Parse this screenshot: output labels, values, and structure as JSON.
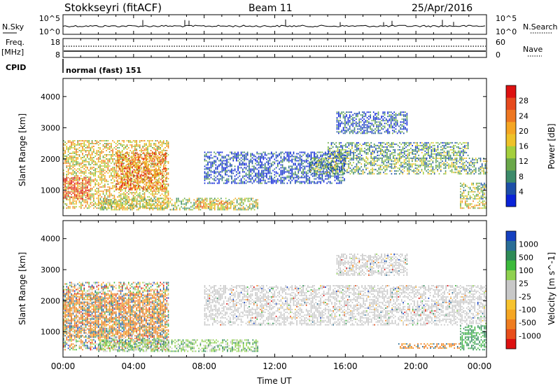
{
  "header": {
    "station": "Stokkseyri (fitACF)",
    "beam": "Beam 11",
    "date": "25/Apr/2016"
  },
  "nsky_panel": {
    "left_label": "N.Sky",
    "left_ticks": [
      "10^5",
      "10^0"
    ],
    "right_ticks": [
      "10^5",
      "10^0"
    ],
    "right_label": "N.Search",
    "series": [
      {
        "name": "N.Sky",
        "style": "solid"
      },
      {
        "name": "N.Search",
        "style": "dotted"
      }
    ]
  },
  "freq_panel": {
    "left_label_1": "Freq.",
    "left_label_2": "[MHz]",
    "left_ticks": [
      "18",
      "8"
    ],
    "right_ticks": [
      "60",
      "0"
    ],
    "right_label": "Nave",
    "series": [
      {
        "name": "Freq.",
        "style": "solid"
      },
      {
        "name": "Nave",
        "style": "dotted"
      }
    ]
  },
  "cpid": {
    "label": "CPID",
    "value": "normal (fast) 151"
  },
  "x_axis": {
    "label": "Time UT",
    "tick_labels": [
      "00:00",
      "04:00",
      "08:00",
      "12:00",
      "16:00",
      "20:00",
      "00:00"
    ]
  },
  "chart_data": [
    {
      "type": "heatmap",
      "name": "power",
      "xlabel": "Time UT",
      "ylabel": "Slant Range [km]",
      "x_range_hours": [
        0,
        24
      ],
      "ylim": [
        180,
        4580
      ],
      "y_ticks": [
        1000,
        2000,
        3000,
        4000
      ],
      "colorbar": {
        "label": "Power [dB]",
        "tick_labels": [
          "4",
          "8",
          "12",
          "16",
          "20",
          "24",
          "28"
        ],
        "colors": [
          "#0a23d8",
          "#1d4fa8",
          "#3c8a6a",
          "#6aa84a",
          "#a4cf3c",
          "#eec229",
          "#f5a623",
          "#ee7722",
          "#e64a1e",
          "#dd1111"
        ]
      },
      "regions": [
        {
          "t": [
            0.0,
            6.0
          ],
          "r": [
            400,
            2600
          ],
          "level": 0.55
        },
        {
          "t": [
            0.0,
            1.5
          ],
          "r": [
            700,
            1400
          ],
          "level": 0.85
        },
        {
          "t": [
            3.0,
            5.8
          ],
          "r": [
            1000,
            2200
          ],
          "level": 0.75
        },
        {
          "t": [
            2.0,
            11.0
          ],
          "r": [
            350,
            750
          ],
          "level": 0.45
        },
        {
          "t": [
            7.5,
            9.5
          ],
          "r": [
            400,
            650
          ],
          "level": 0.65
        },
        {
          "t": [
            8.0,
            16.0
          ],
          "r": [
            1200,
            2200
          ],
          "level": 0.1
        },
        {
          "t": [
            14.0,
            24.0
          ],
          "r": [
            1500,
            2000
          ],
          "level": 0.35
        },
        {
          "t": [
            15.0,
            23.0
          ],
          "r": [
            2000,
            2500
          ],
          "level": 0.3
        },
        {
          "t": [
            15.5,
            19.5
          ],
          "r": [
            2800,
            3500
          ],
          "level": 0.15
        },
        {
          "t": [
            22.5,
            24.0
          ],
          "r": [
            700,
            1200
          ],
          "level": 0.4
        },
        {
          "t": [
            22.5,
            24.0
          ],
          "r": [
            400,
            650
          ],
          "level": 0.55
        }
      ]
    },
    {
      "type": "heatmap",
      "name": "velocity",
      "xlabel": "Time UT",
      "ylabel": "Slant Range [km]",
      "x_range_hours": [
        0,
        24
      ],
      "ylim": [
        180,
        4580
      ],
      "y_ticks": [
        1000,
        2000,
        3000,
        4000
      ],
      "colorbar": {
        "label": "Velocity [m s^-1]",
        "tick_labels": [
          "1000",
          "500",
          "100",
          "25",
          "-25",
          "-100",
          "-500",
          "-1000"
        ],
        "colors": [
          "#1540c0",
          "#2a6e96",
          "#2e8b57",
          "#3cba3c",
          "#8fd14f",
          "#c8c8c8",
          "#c8c8c8",
          "#f7c32e",
          "#f5a623",
          "#ef7d20",
          "#e84e1b",
          "#dd1111"
        ]
      },
      "regions": [
        {
          "t": [
            0.0,
            6.0
          ],
          "r": [
            400,
            2600
          ],
          "level": "mixed"
        },
        {
          "t": [
            0.0,
            5.8
          ],
          "r": [
            800,
            2200
          ],
          "level": "orange"
        },
        {
          "t": [
            2.0,
            11.0
          ],
          "r": [
            350,
            750
          ],
          "level": "green-grey"
        },
        {
          "t": [
            8.0,
            24.0
          ],
          "r": [
            1200,
            2500
          ],
          "level": "grey"
        },
        {
          "t": [
            15.5,
            19.5
          ],
          "r": [
            2800,
            3500
          ],
          "level": "grey"
        },
        {
          "t": [
            19.0,
            22.5
          ],
          "r": [
            450,
            600
          ],
          "level": "orange"
        },
        {
          "t": [
            22.5,
            24.0
          ],
          "r": [
            400,
            1200
          ],
          "level": "green"
        }
      ]
    }
  ]
}
